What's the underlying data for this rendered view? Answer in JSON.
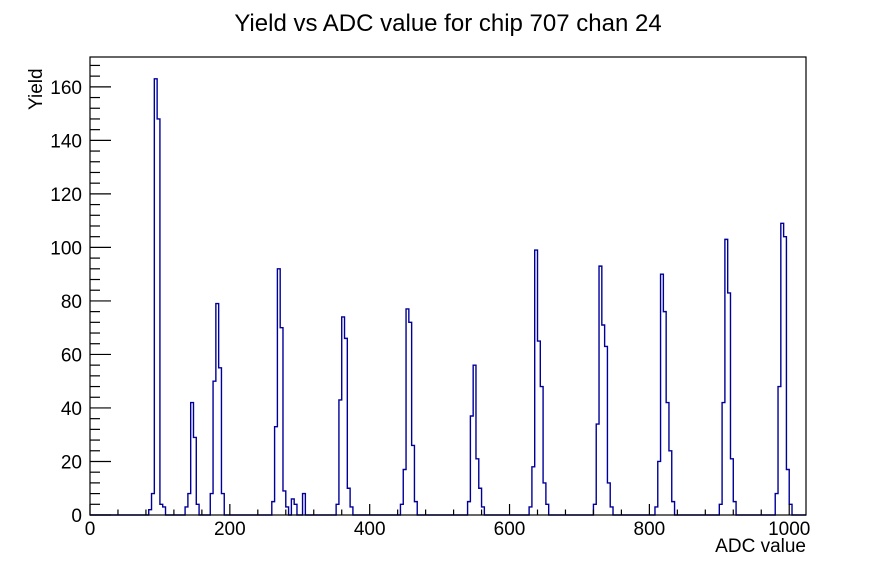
{
  "window": {
    "background": "#ffffff"
  },
  "chart_data": {
    "type": "bar",
    "subtype": "histogram-step-outline",
    "title": "Yield vs ADC value for chip 707 chan 24",
    "xlabel": "ADC value",
    "ylabel": "Yield",
    "xlim": [
      0,
      1024
    ],
    "ylim": [
      0,
      171.15
    ],
    "x_ticks": [
      0,
      200,
      400,
      600,
      800,
      1000
    ],
    "x_minor_step": 40,
    "y_ticks": [
      0,
      20,
      40,
      60,
      80,
      100,
      120,
      140,
      160
    ],
    "y_minor_step": 4,
    "grid": false,
    "legend": false,
    "bin_width": 4,
    "line_color": "#000099",
    "axis_color": "#000000",
    "bins": [
      [
        84,
        2
      ],
      [
        88,
        8
      ],
      [
        92,
        163
      ],
      [
        96,
        148
      ],
      [
        100,
        4
      ],
      [
        104,
        3
      ],
      [
        136,
        3
      ],
      [
        140,
        8
      ],
      [
        144,
        42
      ],
      [
        148,
        29
      ],
      [
        152,
        4
      ],
      [
        172,
        8
      ],
      [
        176,
        50
      ],
      [
        180,
        79
      ],
      [
        184,
        55
      ],
      [
        188,
        8
      ],
      [
        260,
        5
      ],
      [
        264,
        33
      ],
      [
        268,
        92
      ],
      [
        272,
        70
      ],
      [
        276,
        9
      ],
      [
        280,
        3
      ],
      [
        288,
        6
      ],
      [
        292,
        4
      ],
      [
        304,
        8
      ],
      [
        352,
        4
      ],
      [
        356,
        43
      ],
      [
        360,
        74
      ],
      [
        364,
        66
      ],
      [
        368,
        10
      ],
      [
        372,
        3
      ],
      [
        444,
        4
      ],
      [
        448,
        17
      ],
      [
        452,
        77
      ],
      [
        456,
        72
      ],
      [
        460,
        26
      ],
      [
        464,
        5
      ],
      [
        540,
        5
      ],
      [
        544,
        37
      ],
      [
        548,
        56
      ],
      [
        552,
        21
      ],
      [
        556,
        10
      ],
      [
        560,
        3
      ],
      [
        628,
        3
      ],
      [
        632,
        18
      ],
      [
        636,
        99
      ],
      [
        640,
        65
      ],
      [
        644,
        48
      ],
      [
        648,
        12
      ],
      [
        652,
        4
      ],
      [
        720,
        4
      ],
      [
        724,
        34
      ],
      [
        728,
        93
      ],
      [
        732,
        71
      ],
      [
        736,
        63
      ],
      [
        740,
        12
      ],
      [
        744,
        3
      ],
      [
        808,
        3
      ],
      [
        812,
        20
      ],
      [
        816,
        90
      ],
      [
        820,
        76
      ],
      [
        824,
        42
      ],
      [
        828,
        24
      ],
      [
        832,
        5
      ],
      [
        900,
        4
      ],
      [
        904,
        42
      ],
      [
        908,
        103
      ],
      [
        912,
        83
      ],
      [
        916,
        21
      ],
      [
        920,
        5
      ],
      [
        980,
        8
      ],
      [
        984,
        48
      ],
      [
        988,
        109
      ],
      [
        992,
        104
      ],
      [
        996,
        17
      ],
      [
        1000,
        4
      ]
    ]
  }
}
